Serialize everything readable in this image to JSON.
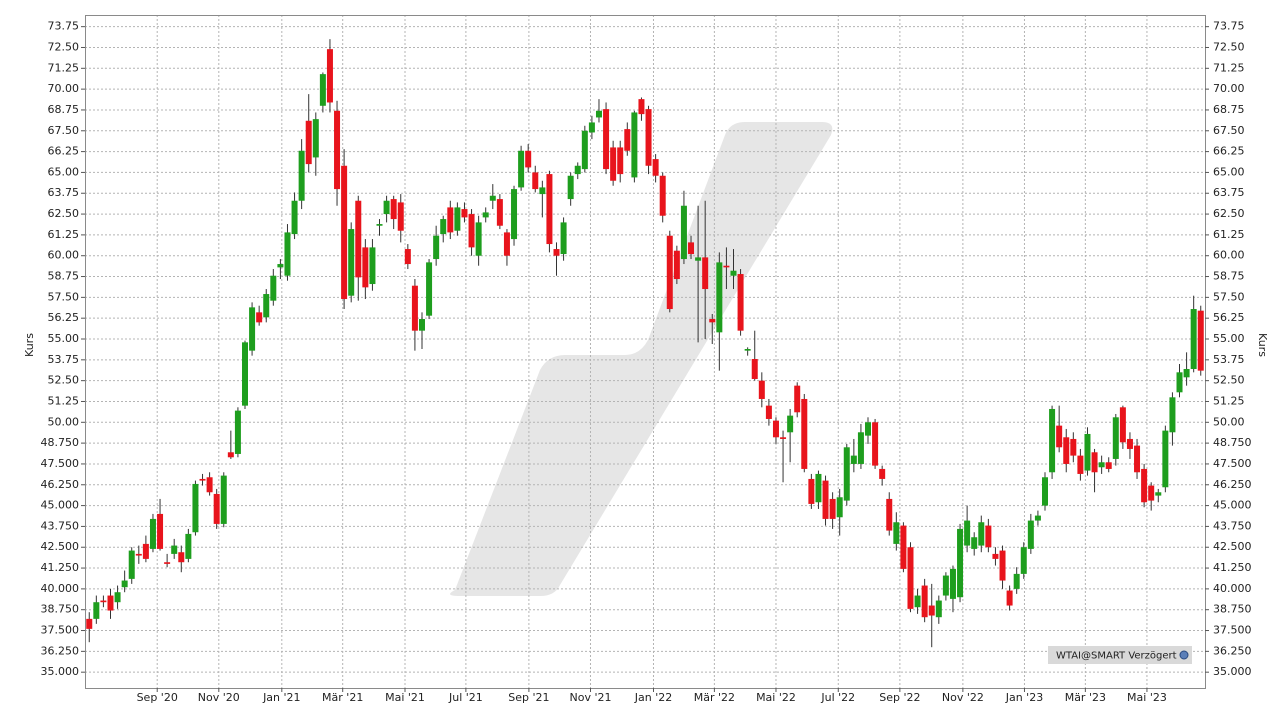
{
  "chart_data": {
    "type": "candlestick",
    "ylabel": "Kurs",
    "y2label": "Kurs",
    "source": "WTAI@SMART Verzögert",
    "up_color": "#1e9e1e",
    "down_color": "#e8141c",
    "grid": true,
    "xlim": [
      -0.6,
      157.6
    ],
    "xticks": [
      {
        "value": 9.6,
        "label": "Sep '20"
      },
      {
        "value": 18.3,
        "label": "Nov '20"
      },
      {
        "value": 27.2,
        "label": "Jan '21"
      },
      {
        "value": 35.8,
        "label": "Mär '21"
      },
      {
        "value": 44.6,
        "label": "Mai '21"
      },
      {
        "value": 53.2,
        "label": "Jul '21"
      },
      {
        "value": 62.1,
        "label": "Sep '21"
      },
      {
        "value": 70.8,
        "label": "Nov '21"
      },
      {
        "value": 79.7,
        "label": "Jan '22"
      },
      {
        "value": 88.3,
        "label": "Mär '22"
      },
      {
        "value": 97.0,
        "label": "Mai '22"
      },
      {
        "value": 105.8,
        "label": "Jul '22"
      },
      {
        "value": 114.5,
        "label": "Sep '22"
      },
      {
        "value": 123.4,
        "label": "Nov '22"
      },
      {
        "value": 132.1,
        "label": "Jan '23"
      },
      {
        "value": 140.7,
        "label": "Mär '23"
      },
      {
        "value": 149.4,
        "label": "Mai '23"
      }
    ],
    "ylim": [
      34.05,
      74.45
    ],
    "yticks": [
      {
        "value": 35,
        "label": "35.000"
      },
      {
        "value": 36.25,
        "label": "36.250"
      },
      {
        "value": 37.5,
        "label": "37.500"
      },
      {
        "value": 38.75,
        "label": "38.750"
      },
      {
        "value": 40,
        "label": "40.000"
      },
      {
        "value": 41.25,
        "label": "41.250"
      },
      {
        "value": 42.5,
        "label": "42.500"
      },
      {
        "value": 43.75,
        "label": "43.750"
      },
      {
        "value": 45,
        "label": "45.000"
      },
      {
        "value": 46.25,
        "label": "46.250"
      },
      {
        "value": 47.5,
        "label": "47.500"
      },
      {
        "value": 48.75,
        "label": "48.750"
      },
      {
        "value": 50,
        "label": "50.00"
      },
      {
        "value": 51.25,
        "label": "51.25"
      },
      {
        "value": 52.5,
        "label": "52.50"
      },
      {
        "value": 53.75,
        "label": "53.75"
      },
      {
        "value": 55,
        "label": "55.00"
      },
      {
        "value": 56.25,
        "label": "56.25"
      },
      {
        "value": 57.5,
        "label": "57.50"
      },
      {
        "value": 58.75,
        "label": "58.75"
      },
      {
        "value": 60,
        "label": "60.00"
      },
      {
        "value": 61.25,
        "label": "61.25"
      },
      {
        "value": 62.5,
        "label": "62.50"
      },
      {
        "value": 63.75,
        "label": "63.75"
      },
      {
        "value": 65,
        "label": "65.00"
      },
      {
        "value": 66.25,
        "label": "66.25"
      },
      {
        "value": 67.5,
        "label": "67.50"
      },
      {
        "value": 68.75,
        "label": "68.75"
      },
      {
        "value": 70,
        "label": "70.00"
      },
      {
        "value": 71.25,
        "label": "71.25"
      },
      {
        "value": 72.5,
        "label": "72.50"
      },
      {
        "value": 73.75,
        "label": "73.75"
      }
    ],
    "open": [
      38.2,
      38.2,
      39.3,
      39.6,
      39.2,
      40.1,
      40.6,
      42.1,
      42.7,
      42.4,
      44.5,
      41.6,
      42.1,
      42.2,
      41.8,
      43.4,
      46.6,
      46.7,
      45.7,
      43.9,
      48.2,
      48.1,
      51.0,
      54.3,
      56.6,
      56.3,
      57.3,
      59.3,
      58.8,
      61.3,
      63.3,
      68.1,
      65.9,
      69.0,
      72.4,
      68.7,
      65.4,
      57.6,
      63.3,
      60.5,
      58.3,
      61.8,
      62.5,
      63.4,
      63.2,
      60.4,
      58.2,
      55.5,
      56.4,
      59.8,
      61.3,
      62.9,
      61.5,
      62.8,
      62.5,
      60.0,
      62.3,
      63.3,
      63.4,
      61.4,
      61.0,
      64.1,
      66.3,
      65.0,
      63.7,
      64.9,
      60.4,
      60.1,
      63.4,
      64.9,
      65.2,
      67.4,
      68.3,
      68.8,
      66.5,
      66.5,
      67.6,
      64.7,
      69.4,
      68.8,
      65.8,
      64.8,
      61.2,
      60.3,
      59.8,
      60.8,
      59.7,
      59.9,
      56.2,
      55.4,
      59.4,
      58.8,
      58.9,
      54.3,
      53.8,
      52.5,
      51.0,
      50.1,
      49.1,
      49.4,
      52.2,
      51.4,
      46.6,
      45.2,
      46.5,
      45.4,
      44.3,
      45.3,
      47.5,
      47.5,
      49.2,
      50.0,
      47.2,
      45.4,
      42.7,
      43.8,
      42.5,
      38.9,
      40.2,
      39.0,
      38.3,
      39.6,
      39.4,
      39.5,
      42.6,
      42.4,
      42.6,
      43.8,
      42.1,
      42.3,
      39.9,
      40.0,
      40.9,
      42.4,
      44.1,
      45.0,
      47.0,
      49.8,
      49.1,
      49.0,
      48.0,
      47.1,
      48.2,
      47.3,
      47.6,
      47.8,
      50.9,
      49.0,
      48.6,
      47.2,
      46.2,
      45.6,
      46.1,
      49.4,
      51.8,
      52.7,
      53.2,
      56.7
    ],
    "high": [
      38.6,
      39.6,
      39.6,
      40.0,
      40.2,
      41.1,
      42.5,
      42.6,
      43.2,
      44.5,
      45.4,
      42.1,
      43.0,
      42.6,
      43.6,
      46.5,
      46.9,
      47.0,
      46.0,
      47.0,
      49.5,
      50.9,
      54.9,
      57.2,
      57.0,
      58.0,
      59.2,
      59.8,
      61.9,
      63.8,
      67.0,
      69.7,
      68.6,
      71.0,
      73.0,
      69.3,
      66.4,
      62.0,
      63.6,
      61.0,
      61.0,
      62.2,
      63.6,
      63.6,
      63.7,
      60.7,
      58.6,
      56.6,
      59.8,
      61.8,
      62.4,
      63.3,
      63.2,
      63.2,
      62.8,
      62.4,
      62.9,
      64.3,
      63.7,
      61.6,
      64.2,
      66.6,
      66.7,
      65.4,
      64.5,
      65.1,
      60.8,
      62.3,
      65.0,
      65.6,
      67.8,
      68.4,
      69.4,
      69.2,
      66.9,
      66.9,
      68.0,
      68.7,
      69.5,
      69.0,
      66.1,
      65.0,
      61.5,
      60.6,
      63.9,
      61.2,
      63.0,
      63.3,
      56.5,
      60.2,
      60.5,
      60.4,
      59.2,
      54.5,
      55.5,
      53.0,
      51.4,
      50.3,
      49.5,
      50.8,
      52.4,
      51.7,
      46.9,
      47.1,
      46.8,
      45.8,
      46.0,
      48.7,
      49.0,
      49.9,
      50.3,
      50.2,
      47.4,
      45.8,
      44.6,
      44.0,
      42.8,
      40.0,
      40.6,
      40.3,
      39.6,
      41.0,
      41.4,
      43.9,
      45.0,
      43.4,
      44.4,
      44.2,
      42.5,
      42.6,
      40.2,
      41.3,
      42.8,
      44.5,
      44.7,
      47.0,
      51.0,
      51.0,
      49.6,
      49.4,
      48.4,
      49.7,
      48.4,
      48.0,
      47.9,
      50.5,
      51.0,
      49.4,
      49.0,
      47.5,
      46.4,
      46.0,
      49.8,
      51.8,
      53.5,
      54.2,
      57.6,
      57.0
    ],
    "low": [
      36.8,
      37.9,
      38.9,
      38.2,
      38.8,
      39.8,
      40.3,
      41.5,
      41.6,
      42.2,
      42.3,
      41.3,
      41.8,
      41.0,
      41.6,
      43.2,
      46.2,
      45.6,
      43.6,
      43.7,
      47.8,
      47.9,
      50.8,
      54.0,
      55.8,
      56.0,
      57.0,
      58.6,
      58.5,
      61.0,
      62.8,
      65.0,
      64.8,
      68.6,
      68.6,
      63.0,
      56.8,
      57.2,
      57.3,
      57.4,
      57.9,
      61.2,
      62.0,
      61.6,
      60.8,
      59.2,
      54.3,
      54.4,
      56.2,
      59.4,
      60.8,
      61.0,
      61.2,
      62.0,
      60.0,
      59.4,
      62.0,
      62.8,
      61.6,
      59.4,
      60.6,
      63.9,
      65.0,
      63.8,
      62.3,
      60.2,
      58.8,
      59.7,
      63.0,
      64.6,
      65.0,
      67.0,
      68.0,
      64.9,
      64.2,
      64.4,
      66.0,
      64.4,
      68.1,
      64.9,
      64.4,
      62.0,
      56.6,
      58.3,
      59.5,
      59.8,
      54.8,
      55.0,
      54.7,
      53.1,
      58.0,
      58.0,
      55.2,
      54.0,
      52.5,
      50.9,
      49.8,
      48.7,
      46.4,
      47.6,
      50.3,
      47.0,
      44.8,
      44.8,
      43.8,
      43.6,
      43.2,
      45.0,
      47.0,
      47.2,
      48.7,
      47.2,
      46.2,
      43.2,
      42.3,
      41.0,
      38.6,
      38.5,
      38.0,
      36.5,
      37.9,
      39.3,
      38.6,
      39.2,
      42.2,
      42.0,
      42.2,
      42.2,
      41.4,
      40.0,
      38.7,
      39.7,
      40.6,
      42.1,
      43.8,
      44.7,
      46.6,
      48.2,
      47.0,
      47.6,
      46.5,
      46.8,
      45.8,
      46.9,
      47.0,
      47.4,
      48.4,
      47.8,
      46.6,
      44.9,
      44.7,
      45.2,
      45.8,
      48.6,
      51.5,
      52.2,
      53.0,
      52.8
    ],
    "close": [
      37.6,
      39.2,
      39.2,
      38.7,
      39.8,
      40.5,
      42.3,
      42.0,
      41.8,
      44.2,
      42.4,
      41.5,
      42.6,
      41.6,
      43.3,
      46.3,
      46.5,
      45.8,
      43.9,
      46.8,
      47.9,
      50.7,
      54.8,
      56.9,
      56.0,
      57.7,
      58.8,
      59.5,
      61.4,
      63.3,
      66.3,
      65.5,
      68.2,
      70.9,
      69.2,
      64.0,
      57.4,
      61.6,
      58.7,
      58.1,
      60.5,
      61.9,
      63.3,
      62.2,
      61.5,
      59.5,
      55.5,
      56.2,
      59.6,
      61.2,
      62.2,
      61.4,
      62.9,
      62.3,
      60.5,
      62.0,
      62.6,
      63.6,
      61.8,
      60.0,
      64.0,
      66.3,
      65.3,
      64.0,
      64.1,
      60.7,
      60.0,
      62.0,
      64.8,
      65.4,
      67.5,
      68.0,
      68.7,
      65.2,
      64.5,
      64.9,
      66.3,
      68.6,
      68.5,
      65.4,
      64.8,
      62.4,
      56.8,
      58.6,
      63.0,
      60.1,
      59.9,
      58.0,
      56.0,
      59.6,
      59.3,
      59.1,
      55.5,
      54.4,
      52.6,
      51.4,
      50.2,
      49.1,
      49.0,
      50.4,
      50.6,
      47.2,
      45.1,
      46.9,
      44.2,
      44.2,
      45.5,
      48.5,
      48.0,
      49.4,
      50.0,
      47.4,
      46.6,
      43.5,
      44.0,
      41.2,
      38.8,
      39.6,
      38.3,
      38.4,
      39.3,
      40.8,
      41.2,
      43.6,
      44.1,
      43.1,
      44.0,
      42.5,
      41.8,
      40.5,
      39.0,
      40.9,
      42.5,
      44.1,
      44.4,
      46.7,
      50.8,
      48.5,
      47.5,
      48.0,
      46.9,
      49.3,
      47.0,
      47.6,
      47.2,
      50.3,
      48.8,
      48.4,
      47.0,
      45.2,
      45.3,
      45.8,
      49.5,
      51.5,
      53.0,
      53.2,
      56.8,
      53.1
    ]
  }
}
